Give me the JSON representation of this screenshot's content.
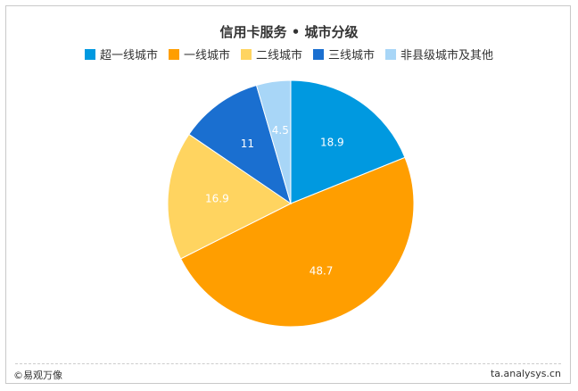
{
  "chart_data": {
    "type": "pie",
    "title": "信用卡服务 • 城市分级",
    "categories": [
      "超一线城市",
      "一线城市",
      "二线城市",
      "三线城市",
      "非县级城市及其他"
    ],
    "values": [
      18.9,
      48.7,
      16.9,
      11,
      4.5
    ],
    "value_labels": [
      "18.9",
      "48.7",
      "16.9",
      "11",
      "4.5"
    ],
    "colors": [
      "#0099e0",
      "#ff9e00",
      "#ffd460",
      "#1a6fd0",
      "#a8d6f7"
    ],
    "legend_position": "top"
  },
  "footer": {
    "left_text": "©易观万像",
    "right_text": "ta.analysys.cn"
  }
}
